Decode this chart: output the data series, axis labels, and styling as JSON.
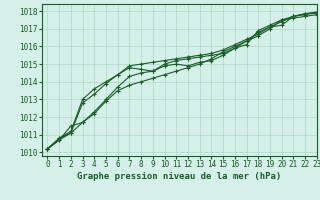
{
  "xlabel": "Graphe pression niveau de la mer (hPa)",
  "xlim": [
    -0.5,
    23
  ],
  "ylim": [
    1009.8,
    1018.4
  ],
  "yticks": [
    1010,
    1011,
    1012,
    1013,
    1014,
    1015,
    1016,
    1017,
    1018
  ],
  "xticks": [
    0,
    1,
    2,
    3,
    4,
    5,
    6,
    7,
    8,
    9,
    10,
    11,
    12,
    13,
    14,
    15,
    16,
    17,
    18,
    19,
    20,
    21,
    22,
    23
  ],
  "background_color": "#d5f0e8",
  "plot_bg_color": "#d5f0e8",
  "grid_color": "#b0d8c8",
  "line_color": "#1a5c2a",
  "tick_fontsize": 5.5,
  "xlabel_fontsize": 6.5,
  "series": [
    [
      1010.2,
      1010.8,
      1011.1,
      1012.8,
      1013.3,
      1013.9,
      1014.4,
      1014.8,
      1014.7,
      1014.6,
      1014.9,
      1015.0,
      1014.9,
      1015.1,
      1015.2,
      1015.5,
      1015.9,
      1016.1,
      1016.9,
      1017.2,
      1017.5,
      1017.7,
      1017.8,
      1017.9
    ],
    [
      1010.2,
      1010.7,
      1011.5,
      1011.7,
      1012.3,
      1013.0,
      1013.7,
      1014.3,
      1014.5,
      1014.6,
      1015.0,
      1015.2,
      1015.3,
      1015.4,
      1015.5,
      1015.6,
      1015.9,
      1016.3,
      1016.8,
      1017.1,
      1017.2,
      1017.7,
      1017.85,
      1017.95
    ],
    [
      1010.2,
      1010.7,
      1011.1,
      1011.7,
      1012.2,
      1012.9,
      1013.5,
      1013.8,
      1014.0,
      1014.2,
      1014.4,
      1014.6,
      1014.8,
      1015.0,
      1015.3,
      1015.7,
      1016.0,
      1016.3,
      1016.6,
      1017.0,
      1017.5,
      1017.6,
      1017.7,
      1017.8
    ],
    [
      1010.2,
      1010.8,
      1011.2,
      1013.0,
      1013.6,
      1014.0,
      1014.4,
      1014.9,
      1015.0,
      1015.1,
      1015.2,
      1015.3,
      1015.4,
      1015.5,
      1015.6,
      1015.8,
      1016.1,
      1016.4,
      1016.7,
      1017.1,
      1017.4,
      1017.7,
      1017.85,
      1017.9
    ]
  ]
}
